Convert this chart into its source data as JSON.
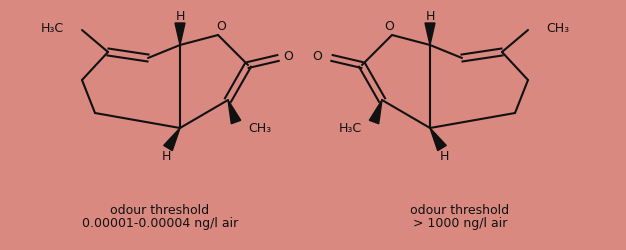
{
  "background_color": "#d9897f",
  "text_color": "#111111",
  "label1_line1": "odour threshold",
  "label1_line2": "0.00001-0.00004 ng/l air",
  "label2_line1": "odour threshold",
  "label2_line2": "> 1000 ng/l air",
  "fig_width": 6.26,
  "fig_height": 2.5,
  "dpi": 100
}
